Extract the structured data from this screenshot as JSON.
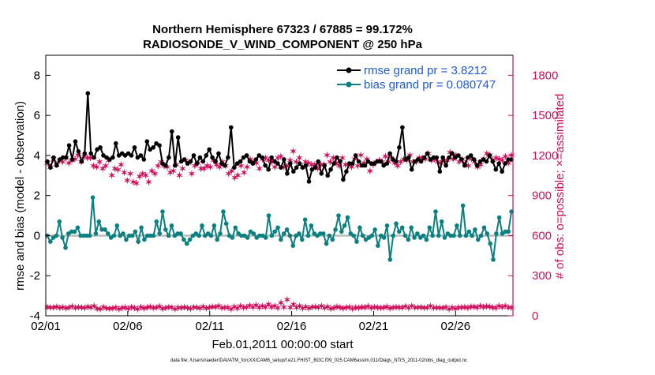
{
  "chart_data": {
    "type": "line",
    "title_line1": "Northern Hemisphere 67323 / 67885 = 99.172%",
    "title_line2": "RADIOSONDE_V_WIND_COMPONENT @ 250 hPa",
    "xlabel": "Feb.01,2011 00:00:00 start",
    "ylabel_left": "rmse and bias (model - observation)",
    "ylabel_right": "# of obs: o=possible; ×=assimilated",
    "footer": "data file: /Users/raeder/DAI/ATM_forcXX/CAM6_setup/f.e21.FHIST_BGC.f09_025.CAM6assim.011/Diags_NTrS_2011-02/obs_diag_output.nc",
    "x_ticks": [
      "02/01",
      "02/06",
      "02/11",
      "02/16",
      "02/21",
      "02/26"
    ],
    "x_tick_days": [
      0,
      5,
      10,
      15,
      20,
      25
    ],
    "x_range_days": [
      0,
      28.5
    ],
    "ylim_left": [
      -4,
      9
    ],
    "y_ticks_left": [
      -4,
      -2,
      0,
      2,
      4,
      6,
      8
    ],
    "ylim_right": [
      0,
      1950
    ],
    "y_ticks_right": [
      0,
      300,
      600,
      900,
      1200,
      1500,
      1800
    ],
    "colors": {
      "rmse": "#000000",
      "bias": "#0a8080",
      "obs": "#d0105a",
      "zero_line": "#bbbbbb",
      "legend_text": "#1f5ad6"
    },
    "legend": [
      {
        "key": "rmse",
        "label": "rmse grand pr = 3.8212"
      },
      {
        "key": "bias",
        "label": "bias grand pr = 0.080747"
      }
    ],
    "rmse": [
      3.7,
      3.4,
      3.9,
      3.5,
      3.8,
      3.9,
      3.9,
      4.5,
      3.8,
      4.7,
      4.2,
      3.7,
      4.1,
      7.1,
      4.1,
      3.9,
      4.3,
      4.4,
      4.0,
      3.9,
      3.8,
      3.9,
      4.6,
      4.0,
      4.1,
      4.0,
      4.1,
      4.0,
      4.4,
      3.9,
      4.0,
      3.8,
      4.7,
      4.3,
      4.4,
      4.6,
      4.5,
      3.6,
      3.5,
      3.9,
      5.2,
      3.5,
      4.9,
      3.7,
      3.8,
      3.6,
      3.7,
      4.0,
      3.6,
      3.9,
      3.7,
      4.0,
      4.3,
      3.9,
      3.7,
      4.1,
      3.6,
      3.5,
      3.9,
      5.4,
      3.4,
      3.6,
      3.7,
      3.9,
      4.0,
      3.7,
      3.6,
      3.8,
      4.0,
      3.9,
      3.5,
      3.3,
      3.9,
      3.7,
      3.6,
      3.4,
      3.8,
      3.1,
      3.6,
      3.2,
      3.4,
      3.6,
      3.4,
      3.5,
      2.7,
      3.3,
      3.4,
      3.7,
      3.1,
      3.5,
      3.0,
      3.3,
      3.6,
      3.9,
      3.7,
      2.8,
      3.2,
      3.6,
      3.6,
      4.0,
      3.7,
      3.5,
      3.5,
      3.7,
      3.6,
      3.6,
      3.7,
      3.7,
      3.5,
      3.6,
      4.1,
      3.8,
      3.7,
      4.4,
      5.4,
      3.8,
      3.9,
      3.3,
      3.7,
      3.8,
      3.7,
      3.9,
      4.1,
      3.8,
      3.9,
      3.9,
      3.2,
      3.9,
      3.5,
      3.9,
      4.1,
      3.9,
      4.0,
      3.8,
      3.5,
      3.9,
      4.0,
      3.8,
      3.5,
      3.7,
      3.8,
      3.7,
      4.0,
      3.7,
      3.3,
      3.6,
      3.2,
      3.6,
      3.8,
      3.8
    ],
    "bias": [
      0.0,
      -0.3,
      -0.1,
      0.0,
      0.7,
      -0.1,
      -0.6,
      0.1,
      0.2,
      0.2,
      0.4,
      0.0,
      0.0,
      0.0,
      0.0,
      1.9,
      0.1,
      0.7,
      0.3,
      0.3,
      0.1,
      -0.1,
      0.0,
      0.5,
      0.0,
      0.1,
      -0.2,
      0.0,
      0.0,
      0.2,
      -0.3,
      0.4,
      -0.2,
      0.0,
      0.0,
      0.0,
      0.7,
      0.1,
      1.2,
      0.3,
      0.0,
      0.5,
      0.0,
      0.1,
      0.1,
      -0.2,
      -0.4,
      -0.2,
      0.0,
      0.1,
      0.0,
      0.5,
      0.0,
      0.1,
      0.0,
      0.5,
      -0.2,
      0.1,
      1.2,
      0.6,
      0.0,
      -0.1,
      0.4,
      0.1,
      0.0,
      0.0,
      -0.1,
      0.2,
      0.1,
      -0.1,
      0.0,
      0.0,
      -0.1,
      1.0,
      0.0,
      0.2,
      0.4,
      -0.2,
      0.1,
      0.3,
      0.0,
      -0.5,
      0.0,
      0.1,
      -0.2,
      0.8,
      0.0,
      0.5,
      0.1,
      0.0,
      0.1,
      0.1,
      -0.4,
      0.0,
      -0.2,
      0.3,
      1.0,
      0.2,
      0.5,
      0.9,
      0.1,
      0.0,
      -0.3,
      0.4,
      0.0,
      -0.2,
      -0.1,
      0.0,
      0.3,
      -0.5,
      0.0,
      -0.1,
      0.5,
      -1.2,
      0.0,
      0.6,
      0.2,
      0.4,
      0.0,
      -0.2,
      0.4,
      -0.1,
      0.1,
      -0.1,
      0.0,
      -0.2,
      0.4,
      0.0,
      1.2,
      0.0,
      0.7,
      -0.1,
      0.1,
      0.0,
      0.0,
      0.5,
      0.0,
      1.5,
      0.0,
      0.2,
      0.0,
      0.3,
      -0.2,
      0.0,
      0.4,
      0.1,
      -0.4,
      -1.2,
      0.1,
      0.9,
      0.1,
      0.2,
      0.2,
      1.2
    ],
    "obs_assimilated": [
      1140,
      1110,
      1170,
      1130,
      1160,
      1150,
      1180,
      1140,
      1160,
      1170,
      1200,
      1150,
      1190,
      1180,
      1180,
      1120,
      1110,
      1150,
      1100,
      1120,
      1160,
      1050,
      1100,
      1090,
      1130,
      1070,
      1010,
      1060,
      1000,
      990,
      1040,
      1060,
      1050,
      1000,
      1080,
      1060,
      1120,
      1150,
      1120,
      1110,
      1070,
      1080,
      1130,
      1050,
      1100,
      1160,
      1140,
      1060,
      1120,
      1140,
      1100,
      1100,
      1120,
      1110,
      1160,
      1130,
      1110,
      1150,
      1120,
      1060,
      1080,
      1030,
      1050,
      1120,
      1070,
      1110,
      1170,
      1150,
      1140,
      1100,
      1170,
      1180,
      1160,
      1150,
      1110,
      1180,
      1190,
      1110,
      1120,
      1160,
      1230,
      1150,
      1180,
      1110,
      1150,
      1140,
      1130,
      1130,
      1100,
      1130,
      1130,
      1200,
      1150,
      1180,
      1140,
      1120,
      1180,
      1130,
      1130,
      1110,
      1170,
      1120,
      1200,
      1140,
      1170,
      1080,
      1130,
      1150,
      1160,
      1150,
      1190,
      1150,
      1180,
      1140,
      1120,
      1150,
      1170,
      1160,
      1200,
      1150,
      1150,
      1180,
      1180,
      1170,
      1210,
      1160,
      1170,
      1150,
      1140,
      1160,
      1160,
      1220,
      1170,
      1200,
      1150,
      1170,
      1140,
      1120,
      1170,
      1150,
      1110,
      1130,
      1170,
      1210,
      1200,
      1160,
      1180,
      1170,
      1160,
      1190,
      1140,
      1200
    ],
    "obs_possible": [
      63,
      58,
      60,
      66,
      55,
      62,
      53,
      60,
      68,
      56,
      61,
      59,
      55,
      64,
      60,
      70,
      50,
      48,
      61,
      54,
      49,
      52,
      58,
      47,
      57,
      60,
      50,
      62,
      56,
      48,
      61,
      52,
      58,
      64,
      55,
      60,
      67,
      50,
      56,
      62,
      59,
      48,
      60,
      55,
      63,
      57,
      49,
      61,
      58,
      52,
      66,
      53,
      60,
      64,
      62,
      72,
      56,
      60,
      58,
      48,
      65,
      54,
      70,
      59,
      61,
      74,
      62,
      76,
      60,
      70,
      61,
      84,
      62,
      72,
      57,
      95,
      62,
      119,
      58,
      84,
      60,
      71,
      54,
      66,
      52,
      61,
      66,
      59,
      72,
      55,
      64,
      50,
      56,
      64,
      60,
      52,
      58,
      61,
      51,
      58,
      55,
      62,
      59,
      67,
      55,
      63,
      60,
      57,
      59,
      66,
      53,
      58,
      62,
      58,
      60,
      68,
      55,
      72,
      58,
      60,
      62,
      55,
      59,
      70,
      55,
      59,
      57,
      56,
      62,
      47,
      58,
      49,
      60,
      58,
      62,
      56,
      65,
      64,
      60,
      72,
      62,
      67,
      65,
      58,
      56,
      70,
      63,
      72,
      58,
      60
    ]
  }
}
